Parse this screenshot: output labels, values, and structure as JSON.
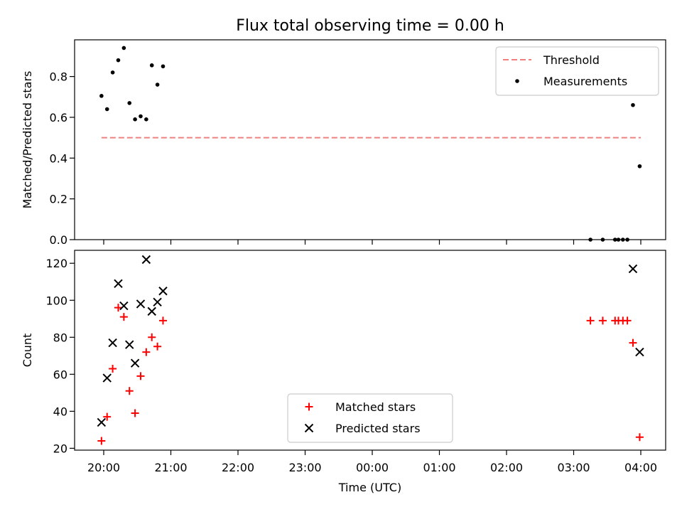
{
  "chart_data": [
    {
      "type": "scatter",
      "title": "Flux total observing time = 0.00 h",
      "xlabel": "",
      "ylabel": "Matched/Predicted stars",
      "ylim": [
        0,
        0.98
      ],
      "yticks": [
        "0.0",
        "0.2",
        "0.4",
        "0.6",
        "0.8"
      ],
      "threshold": {
        "name": "Threshold",
        "value": 0.5,
        "x": [
          "19:58",
          "04:00"
        ],
        "color": "#f08080"
      },
      "legend": {
        "position": "top-right"
      },
      "series": [
        {
          "name": "Measurements",
          "color": "#000000",
          "marker": "dot",
          "points": [
            [
              "19:58",
              0.705
            ],
            [
              "20:03",
              0.64
            ],
            [
              "20:08",
              0.82
            ],
            [
              "20:13",
              0.88
            ],
            [
              "20:18",
              0.94
            ],
            [
              "20:23",
              0.67
            ],
            [
              "20:28",
              0.59
            ],
            [
              "20:33",
              0.605
            ],
            [
              "20:38",
              0.59
            ],
            [
              "20:43",
              0.855
            ],
            [
              "20:48",
              0.76
            ],
            [
              "20:53",
              0.85
            ],
            [
              "03:15",
              0.0
            ],
            [
              "03:26",
              0.0
            ],
            [
              "03:37",
              0.0
            ],
            [
              "03:40",
              0.0
            ],
            [
              "03:44",
              0.0
            ],
            [
              "03:48",
              0.0
            ],
            [
              "03:53",
              0.66
            ],
            [
              "03:59",
              0.36
            ]
          ]
        }
      ]
    },
    {
      "type": "scatter",
      "title": "",
      "xlabel": "Time (UTC)",
      "ylabel": "Count",
      "ylim": [
        19,
        127
      ],
      "yticks": [
        "20",
        "40",
        "60",
        "80",
        "100",
        "120"
      ],
      "xticks": [
        "20:00",
        "21:00",
        "22:00",
        "23:00",
        "00:00",
        "01:00",
        "02:00",
        "03:00",
        "04:00"
      ],
      "legend": {
        "position": "lower-center"
      },
      "series": [
        {
          "name": "Matched stars",
          "color": "#ff0000",
          "marker": "plus",
          "points": [
            [
              "19:58",
              24
            ],
            [
              "20:03",
              37
            ],
            [
              "20:08",
              63
            ],
            [
              "20:13",
              96
            ],
            [
              "20:18",
              91
            ],
            [
              "20:23",
              51
            ],
            [
              "20:28",
              39
            ],
            [
              "20:33",
              59
            ],
            [
              "20:38",
              72
            ],
            [
              "20:43",
              80
            ],
            [
              "20:48",
              75
            ],
            [
              "20:53",
              89
            ],
            [
              "03:15",
              89
            ],
            [
              "03:26",
              89
            ],
            [
              "03:37",
              89
            ],
            [
              "03:40",
              89
            ],
            [
              "03:44",
              89
            ],
            [
              "03:48",
              89
            ],
            [
              "03:53",
              77
            ],
            [
              "03:59",
              26
            ]
          ]
        },
        {
          "name": "Predicted stars",
          "color": "#000000",
          "marker": "x",
          "points": [
            [
              "19:58",
              34
            ],
            [
              "20:03",
              58
            ],
            [
              "20:08",
              77
            ],
            [
              "20:13",
              109
            ],
            [
              "20:18",
              97
            ],
            [
              "20:23",
              76
            ],
            [
              "20:28",
              66
            ],
            [
              "20:33",
              98
            ],
            [
              "20:38",
              122
            ],
            [
              "20:43",
              94
            ],
            [
              "20:48",
              99
            ],
            [
              "20:53",
              105
            ],
            [
              "03:53",
              117
            ],
            [
              "03:59",
              72
            ]
          ]
        }
      ]
    }
  ]
}
